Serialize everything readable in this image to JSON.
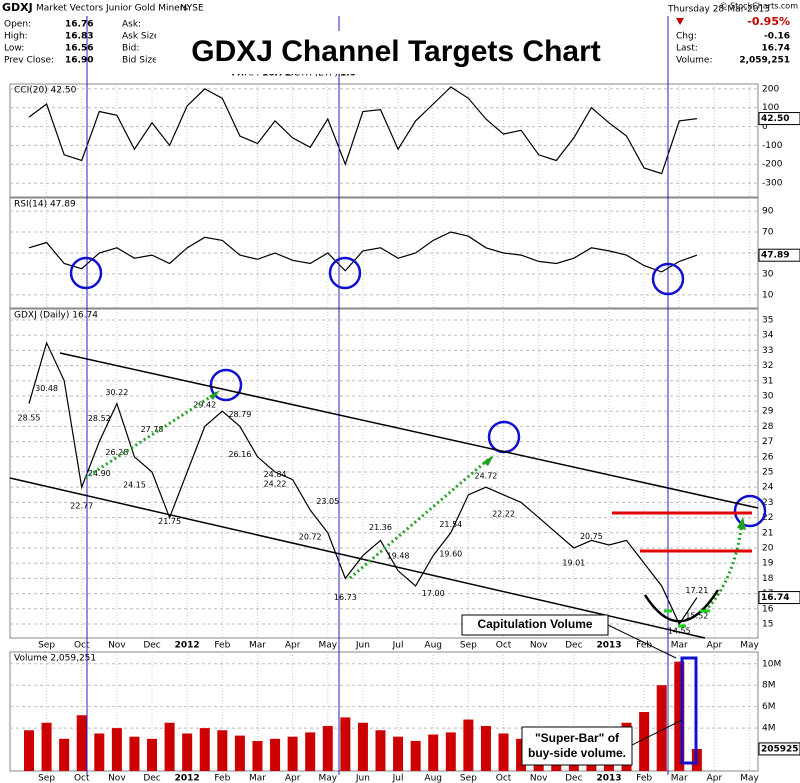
{
  "header": {
    "symbol": "GDXJ",
    "name": "Market Vectors Junior Gold Miners",
    "exchange": "NYSE",
    "copyright": "© StockCharts.com",
    "date": "Thursday 28-Mar-2013",
    "change_pct": "-0.95%",
    "stats_left": [
      [
        "Open:",
        "16.76"
      ],
      [
        "High:",
        "16.83"
      ],
      [
        "Low:",
        "16.56"
      ],
      [
        "Prev Close:",
        "16.90"
      ]
    ],
    "stats_mid": [
      "Ask:",
      "Ask Size:",
      "Bid:",
      "Bid Size:"
    ],
    "vwap": [
      "VWAP:",
      "16.71"
    ],
    "sctr": [
      "SCTR (ETF):",
      "1.0"
    ],
    "stats_right": [
      [
        "Chg:",
        "-0.16"
      ],
      [
        "Last:",
        "16.74"
      ],
      [
        "Volume:",
        "2,059,251"
      ]
    ]
  },
  "title": "GDXJ Channel Targets Chart",
  "annotations": {
    "capitulation": "Capitulation Volume",
    "super_bar": [
      "\"Super-Bar\" of",
      "buy-side volume."
    ]
  },
  "chart_data": [
    {
      "type": "line",
      "ylim": [
        -374,
        226
      ],
      "yticks": [
        200,
        100,
        0,
        -100,
        -200,
        -300
      ],
      "grid": true,
      "last_label": "42.50",
      "series": [
        {
          "name": "CCI(20) 42.50",
          "color": "#000000",
          "values": [
            50,
            120,
            -150,
            -180,
            80,
            60,
            -120,
            20,
            -100,
            110,
            200,
            150,
            -50,
            -90,
            30,
            -60,
            -110,
            40,
            -200,
            80,
            90,
            -120,
            30,
            120,
            210,
            150,
            40,
            -40,
            -20,
            -150,
            -180,
            -60,
            100,
            20,
            -50,
            -220,
            -250,
            30,
            42.5,
            null,
            null,
            null
          ]
        }
      ]
    },
    {
      "type": "line",
      "ylim": [
        -2.5,
        102.5
      ],
      "yticks": [
        90,
        70,
        50,
        30,
        10
      ],
      "grid": true,
      "last_label": "47.89",
      "series": [
        {
          "name": "RSI(14) 47.89",
          "color": "#000000",
          "values": [
            55,
            60,
            40,
            35,
            50,
            55,
            45,
            48,
            40,
            55,
            65,
            62,
            48,
            44,
            50,
            43,
            40,
            50,
            33,
            52,
            55,
            45,
            50,
            62,
            70,
            66,
            55,
            50,
            48,
            42,
            40,
            45,
            55,
            52,
            48,
            38,
            32,
            42,
            47.89,
            null,
            null,
            null
          ]
        }
      ]
    },
    {
      "type": "line",
      "ylim": [
        14.08,
        35.72
      ],
      "yticks": [
        15,
        16,
        17,
        18,
        19,
        20,
        21,
        22,
        23,
        24,
        25,
        26,
        27,
        28,
        29,
        30,
        31,
        32,
        33,
        34,
        35
      ],
      "grid": true,
      "last_label": "16.74",
      "categories": [
        null,
        "Sep",
        null,
        "Oct",
        null,
        "Nov",
        null,
        "Dec",
        null,
        "2012",
        null,
        "Feb",
        null,
        "Mar",
        null,
        "Apr",
        null,
        "May",
        null,
        "Jun",
        null,
        "Jul",
        null,
        "Aug",
        null,
        "Sep",
        null,
        "Oct",
        null,
        "Nov",
        null,
        "Dec",
        null,
        "2013",
        null,
        "Feb",
        null,
        "Mar",
        null,
        "Apr",
        null,
        "May"
      ],
      "series": [
        {
          "name": "GDXJ (Daily) 16.74",
          "color": "#000000",
          "values": [
            29.5,
            33.5,
            31,
            24,
            27,
            29.5,
            26,
            25,
            22,
            25,
            28,
            29,
            28,
            26,
            25,
            24.5,
            22.5,
            21,
            18,
            19.5,
            20.5,
            18.5,
            17.5,
            19.5,
            21,
            23.5,
            24,
            23.5,
            23,
            22,
            21,
            20,
            20.5,
            20.2,
            20.5,
            19,
            17.5,
            15,
            16.74,
            null,
            null,
            null
          ]
        }
      ],
      "point_labels": [
        {
          "x": 0,
          "value": 28.55
        },
        {
          "x": 1,
          "value": 30.48
        },
        {
          "x": 3,
          "value": 22.77
        },
        {
          "x": 4,
          "value": 28.52
        },
        {
          "x": 4,
          "value": 24.9,
          "label": "24.90"
        },
        {
          "x": 5,
          "value": 30.22
        },
        {
          "x": 5,
          "value": 26.28
        },
        {
          "x": 7,
          "value": 27.78
        },
        {
          "x": 6,
          "value": 24.15
        },
        {
          "x": 8,
          "value": 21.75
        },
        {
          "x": 10,
          "value": 29.42
        },
        {
          "x": 12,
          "value": 28.79
        },
        {
          "x": 12,
          "value": 26.16
        },
        {
          "x": 14,
          "value": 24.84
        },
        {
          "x": 14,
          "value": 24.22
        },
        {
          "x": 17,
          "value": 23.05
        },
        {
          "x": 16,
          "value": 20.72
        },
        {
          "x": 20,
          "value": 21.36
        },
        {
          "x": 21,
          "value": 19.48
        },
        {
          "x": 18,
          "value": 16.73
        },
        {
          "x": 23,
          "value": 17,
          "label": "17.00"
        },
        {
          "x": 24,
          "value": 19.6,
          "label": "19.60"
        },
        {
          "x": 24,
          "value": 21.54
        },
        {
          "x": 26,
          "value": 24.72
        },
        {
          "x": 27,
          "value": 22.22
        },
        {
          "x": 32,
          "value": 20.75
        },
        {
          "x": 31,
          "value": 19.01
        },
        {
          "x": 38,
          "value": 17.21
        },
        {
          "x": 37,
          "value": 14.55
        },
        {
          "x": 38,
          "value": 15.52
        }
      ]
    },
    {
      "type": "bar",
      "ylim": [
        0,
        11100000
      ],
      "yticks": [
        {
          "value": 4000000,
          "label": "4M"
        },
        {
          "value": 6000000,
          "label": "6M"
        },
        {
          "value": 8000000,
          "label": "8M"
        },
        {
          "value": 10000000,
          "label": "10M"
        }
      ],
      "grid": true,
      "last_label": "2059251",
      "categories": [
        null,
        "Sep",
        null,
        "Oct",
        null,
        "Nov",
        null,
        "Dec",
        null,
        "2012",
        null,
        "Feb",
        null,
        "Mar",
        null,
        "Apr",
        null,
        "May",
        null,
        "Jun",
        null,
        "Jul",
        null,
        "Aug",
        null,
        "Sep",
        null,
        "Oct",
        null,
        "Nov",
        null,
        "Dec",
        null,
        "2013",
        null,
        "Feb",
        null,
        "Mar",
        null,
        "Apr",
        null,
        "May"
      ],
      "series": [
        {
          "name": "Volume 2,059,251",
          "color": "#cc0000",
          "values": [
            3800000,
            4500000,
            3000000,
            5200000,
            3500000,
            4000000,
            3200000,
            3000000,
            4500000,
            3500000,
            4000000,
            3800000,
            3300000,
            2800000,
            3000000,
            3200000,
            3600000,
            4200000,
            5000000,
            4500000,
            3800000,
            3200000,
            2800000,
            3400000,
            3600000,
            4800000,
            4200000,
            3500000,
            3000000,
            3300000,
            3800000,
            3600000,
            4000000,
            3800000,
            4500000,
            5500000,
            8000000,
            10200000,
            2059251,
            null,
            null,
            null
          ]
        }
      ]
    }
  ]
}
